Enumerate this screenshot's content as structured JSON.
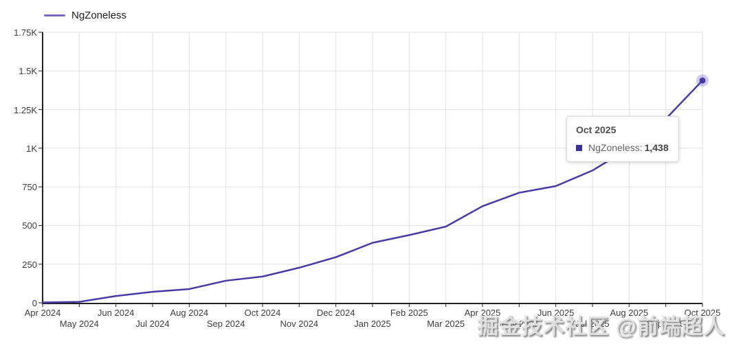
{
  "legend": {
    "label": "NgZoneless"
  },
  "tooltip": {
    "title": "Oct 2025",
    "series_label": "NgZoneless:",
    "value": "1,438"
  },
  "watermark": "掘金技术社区 @前端超人",
  "colors": {
    "line": "#463BA6",
    "marker_glow": "rgba(90,70,190,0.28)",
    "tooltip_marker": "#3A309B",
    "grid": "#E1E1E1",
    "axis": "#212121",
    "tick_label": "#3C3C3C"
  },
  "chart_data": {
    "type": "line",
    "title": "",
    "xlabel": "",
    "ylabel": "",
    "categories": [
      "Apr 2024",
      "May 2024",
      "Jun 2024",
      "Jul 2024",
      "Aug 2024",
      "Sep 2024",
      "Oct 2024",
      "Nov 2024",
      "Dec 2024",
      "Jan 2025",
      "Feb 2025",
      "Mar 2025",
      "Apr 2025",
      "May 2025",
      "Jun 2025",
      "Jul 2025",
      "Aug 2025",
      "Sep 2025",
      "Oct 2025"
    ],
    "series": [
      {
        "name": "NgZoneless",
        "color": "#463BA6",
        "values": [
          2,
          6,
          44,
          71,
          89,
          143,
          170,
          227,
          295,
          388,
          438,
          493,
          625,
          712,
          755,
          856,
          1000,
          1190,
          1438
        ]
      }
    ],
    "ylim": [
      0,
      1750
    ],
    "y_ticks": [
      {
        "label": "0",
        "value": 0
      },
      {
        "label": "250",
        "value": 250
      },
      {
        "label": "500",
        "value": 500
      },
      {
        "label": "750",
        "value": 750
      },
      {
        "label": "1K",
        "value": 1000
      },
      {
        "label": "1.25K",
        "value": 1250
      },
      {
        "label": "1.5K",
        "value": 1500
      },
      {
        "label": "1.75K",
        "value": 1750
      }
    ],
    "grid": true,
    "legend_position": "top-left",
    "x_label_rows": "alternating",
    "highlighted_point": {
      "category": "Oct 2025",
      "value": 1438,
      "display": "1,438"
    }
  }
}
